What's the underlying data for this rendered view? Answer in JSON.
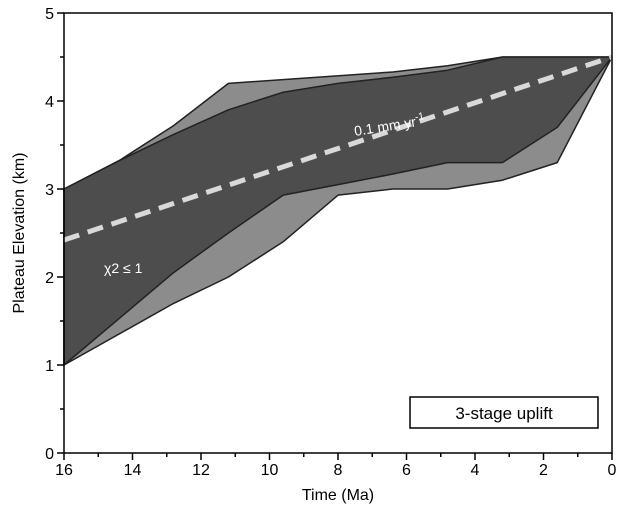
{
  "chart_data": {
    "type": "band",
    "title": "3-stage uplift",
    "xlabel": "Time (Ma)",
    "ylabel": "Plateau Elevation (km)",
    "xlim": [
      16,
      0
    ],
    "ylim": [
      0,
      5
    ],
    "xticks": [
      16,
      14,
      12,
      10,
      8,
      6,
      4,
      2,
      0
    ],
    "xminorticks": [
      15,
      13,
      11,
      9,
      7,
      5,
      3,
      1
    ],
    "yticks": [
      0,
      1,
      2,
      3,
      4,
      5
    ],
    "yminorticks": [
      0.5,
      1.5,
      2.5,
      3.5,
      4.5
    ],
    "bands": [
      {
        "color": "#8c8c8c",
        "upper_x": [
          16,
          14.4,
          12.8,
          11.2,
          6.4,
          4.8,
          3.2,
          0
        ],
        "upper_values": [
          3.0,
          3.32,
          3.72,
          4.2,
          4.33,
          4.4,
          4.5,
          4.5
        ],
        "lower_x": [
          16,
          12.8,
          11.2,
          9.6,
          8,
          6.4,
          4.8,
          3.2,
          1.6,
          0
        ],
        "lower_values": [
          1.0,
          1.7,
          2.0,
          2.4,
          2.93,
          3.0,
          3.0,
          3.1,
          3.3,
          4.5
        ]
      },
      {
        "color": "#4d4d4d",
        "upper_x": [
          16,
          14.4,
          12.8,
          11.2,
          9.6,
          8,
          6.4,
          4.8,
          3.2,
          0
        ],
        "upper_values": [
          3.0,
          3.32,
          3.62,
          3.9,
          4.1,
          4.2,
          4.27,
          4.35,
          4.5,
          4.5
        ],
        "lower_x": [
          16,
          12.8,
          11.2,
          9.6,
          8,
          6.4,
          4.8,
          3.2,
          1.6,
          0
        ],
        "lower_values": [
          1.0,
          2.05,
          2.5,
          2.93,
          3.05,
          3.17,
          3.3,
          3.3,
          3.7,
          4.5
        ]
      }
    ],
    "trend": {
      "color": "#d9d9d9",
      "x": [
        16,
        0
      ],
      "values": [
        2.42,
        4.5
      ]
    },
    "rate_label": "0.1 mm yr",
    "rate_label_sup": "-1",
    "fit_label": "χ2 ≤ 1"
  }
}
